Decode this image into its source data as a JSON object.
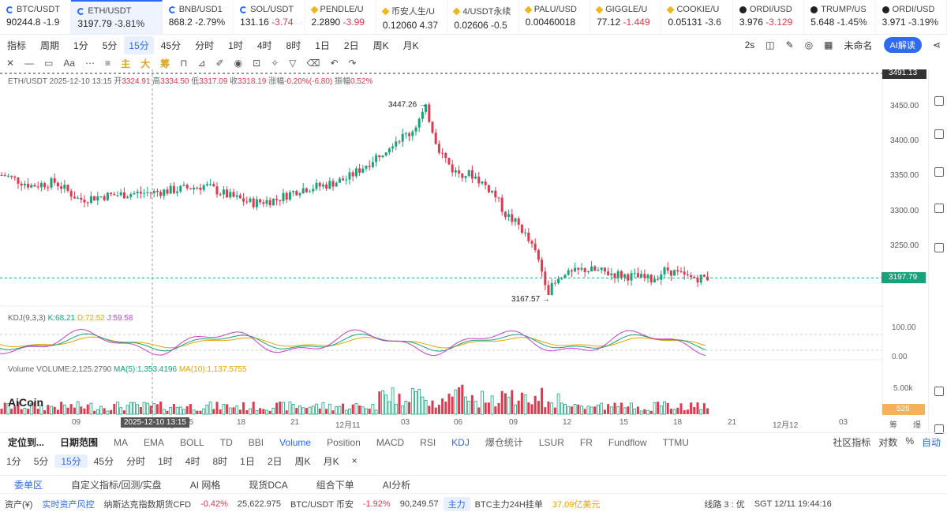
{
  "tickers": [
    {
      "sym": "BTC/USDT",
      "icon": "blue-ring",
      "price": "90244.8",
      "chg": "-1.9",
      "dir": "dn"
    },
    {
      "sym": "ETH/USDT",
      "icon": "blue-ring",
      "price": "3197.79",
      "chg": "-3.81%",
      "dir": "dn",
      "active": true
    },
    {
      "sym": "BNB/USD1",
      "icon": "blue-ring",
      "price": "868.2",
      "chg": "-2.79%",
      "dir": "dn"
    },
    {
      "sym": "SOL/USDT",
      "icon": "blue-ring",
      "price": "131.16",
      "chg": "-3.74",
      "dir": "up"
    },
    {
      "sym": "PENDLE/U",
      "icon": "yellow-diamond",
      "price": "2.2890",
      "chg": "-3.99",
      "dir": "up"
    },
    {
      "sym": "币安人生/U",
      "icon": "yellow-diamond",
      "price": "0.12060",
      "chg": "4.37",
      "dir": "dn"
    },
    {
      "sym": "4/USDT永续",
      "icon": "yellow-diamond",
      "price": "0.02606",
      "chg": "-0.5",
      "dir": "neutral"
    },
    {
      "sym": "PALU/USD",
      "icon": "yellow-diamond",
      "price": "0.00460018",
      "chg": "",
      "dir": "dn"
    },
    {
      "sym": "GIGGLE/U",
      "icon": "yellow-diamond",
      "price": "77.12",
      "chg": "-1.449",
      "dir": "up"
    },
    {
      "sym": "COOKIE/U",
      "icon": "yellow-diamond",
      "price": "0.05131",
      "chg": "-3.6",
      "dir": "neutral"
    },
    {
      "sym": "ORDI/USD",
      "icon": "black-x",
      "price": "3.976",
      "chg": "-3.129",
      "dir": "up"
    },
    {
      "sym": "TRUMP/US",
      "icon": "black-x",
      "price": "5.648",
      "chg": "-1.45%",
      "dir": "neutral"
    },
    {
      "sym": "ORDI/USD",
      "icon": "black-x",
      "price": "3.971",
      "chg": "-3.19%",
      "dir": "neutral"
    }
  ],
  "toolbar1": {
    "items": [
      "指标",
      "周期",
      "1分",
      "5分",
      "15分",
      "45分",
      "分时",
      "1时",
      "4时",
      "8时",
      "1日",
      "2日",
      "周K",
      "月K"
    ],
    "selected": "15分",
    "right": [
      "2s",
      "未命名"
    ],
    "ai": "AI解读"
  },
  "toolbar2": {
    "zh": [
      "主",
      "大",
      "筹"
    ]
  },
  "info": {
    "pair": "ETH/USDT",
    "time": "2025-12-10 13:15",
    "open_l": "开",
    "open": "3324.91",
    "high_l": "高",
    "high": "3334.50",
    "low_l": "低",
    "low": "3317.09",
    "close_l": "收",
    "close": "3318.19",
    "chg_l": "涨幅",
    "chg": "-0.20%(-6.80)",
    "amp_l": "振幅",
    "amp": "0.52%"
  },
  "chart_data": {
    "type": "candlestick",
    "yticks": [
      "3450.00",
      "3400.00",
      "3350.00",
      "3300.00",
      "3250.00"
    ],
    "last_price": "3197.79",
    "top_tag": "3491.13",
    "max_label": "3447.26",
    "min_label": "3167.57",
    "xticks": [
      "09",
      "12月10",
      "15",
      "18",
      "21",
      "12月11",
      "03",
      "06",
      "09",
      "12",
      "15",
      "18",
      "21",
      "12月12",
      "03",
      "筹",
      "爆"
    ],
    "cross_time": "2025-12-10 13:15",
    "kdj": {
      "label": "KDJ(9,3,3)",
      "k": "K:68.21",
      "d": "D:72.52",
      "j": "J:59.58",
      "ticks": [
        "100.00",
        "0.00"
      ]
    },
    "volume": {
      "label": "Volume",
      "vol": "VOLUME:2,125.2790",
      "ma5": "MA(5):1,353.4196",
      "ma10": "MA(10):1,137.5755",
      "tick": "5.00k",
      "tag": "526"
    }
  },
  "bottom1": {
    "items": [
      "定位到...",
      "日期范围",
      "MA",
      "EMA",
      "BOLL",
      "TD",
      "BBI",
      "Volume",
      "Position",
      "MACD",
      "RSI",
      "KDJ",
      "爆仓统计",
      "LSUR",
      "FR",
      "Fundflow",
      "TTMU"
    ],
    "right": [
      "社区指标",
      "对数",
      "%",
      "自动"
    ]
  },
  "bottom2": {
    "items": [
      "1分",
      "5分",
      "15分",
      "45分",
      "分时",
      "1时",
      "4时",
      "8时",
      "1日",
      "2日",
      "周K",
      "月K",
      "×"
    ],
    "selected": "15分"
  },
  "tabs3": [
    "委单区",
    "自定义指标/回测/实盘",
    "AI 网格",
    "现货DCA",
    "组合下单",
    "AI分析"
  ],
  "status": {
    "asset": "资产(¥)",
    "risk": "实时资产风控",
    "nas": "纳斯达克指数期货CFD",
    "nas_chg": "-0.42%",
    "nas_px": "25,622.975",
    "btc": "BTC/USDT 币安",
    "btc_chg": "-1.92%",
    "btc_px": "90,249.57",
    "main": "主力",
    "hang": "BTC主力24H挂单",
    "hang_v": "37.09亿美元",
    "line": "线路 3 : 优",
    "time": "SGT 12/11 19:44:16"
  },
  "logo": "AiCoin"
}
